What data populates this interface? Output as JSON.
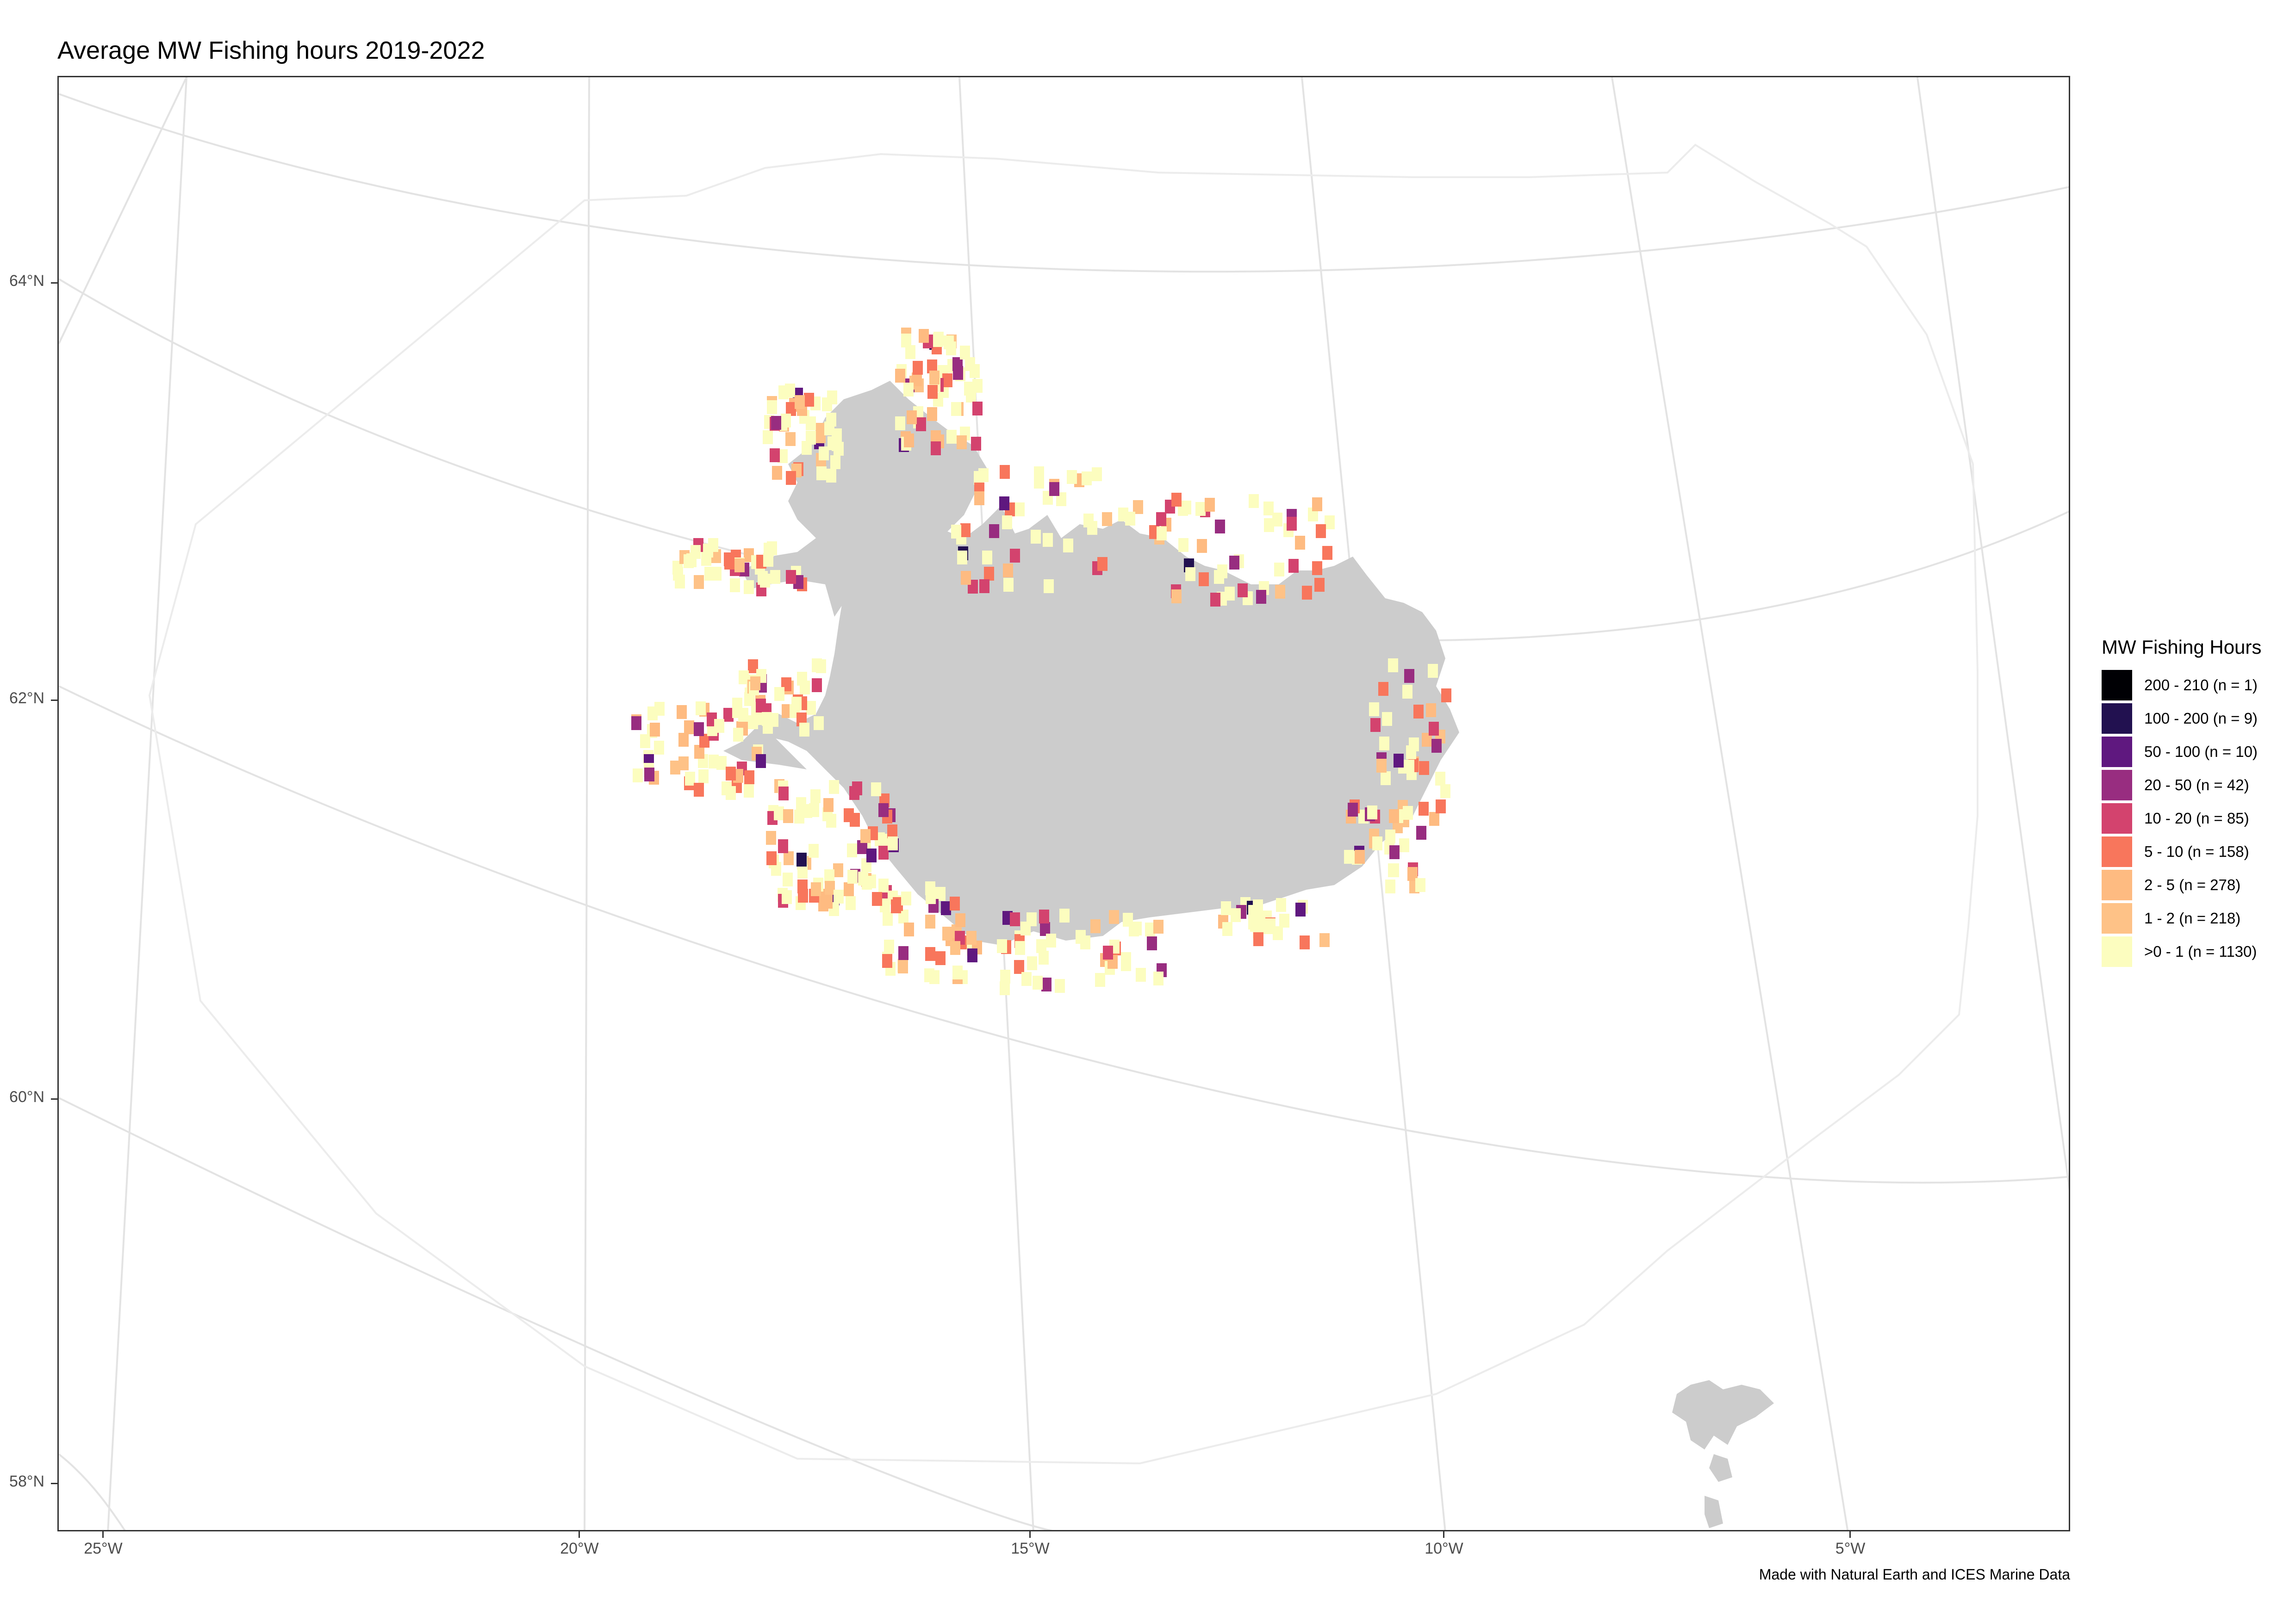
{
  "title": "Average MW Fishing hours 2019-2022",
  "caption": "Made with Natural Earth and ICES Marine Data",
  "axes": {
    "y_ticks": [
      {
        "label": "64°N",
        "lat": 64
      },
      {
        "label": "62°N",
        "lat": 62
      },
      {
        "label": "60°N",
        "lat": 60
      },
      {
        "label": "58°N",
        "lat": 58
      }
    ],
    "x_ticks": [
      {
        "label": "25°W",
        "lon": -25
      },
      {
        "label": "20°W",
        "lon": -20
      },
      {
        "label": "15°W",
        "lon": -15
      },
      {
        "label": "10°W",
        "lon": -10
      },
      {
        "label": "5°W",
        "lon": -5
      }
    ]
  },
  "legend": {
    "title": "MW Fishing Hours",
    "items": [
      {
        "label": "200 - 210 (n = 1)",
        "color": "#000004"
      },
      {
        "label": "100 - 200 (n = 9)",
        "color": "#221150"
      },
      {
        "label": "50 - 100 (n = 10)",
        "color": "#5f187f"
      },
      {
        "label": "20 - 50 (n = 42)",
        "color": "#982d80"
      },
      {
        "label": "10 - 20 (n = 85)",
        "color": "#d3436e"
      },
      {
        "label": "5 - 10 (n = 158)",
        "color": "#f8765c"
      },
      {
        "label": "2 - 5 (n = 278)",
        "color": "#febb81"
      },
      {
        "label": "1 - 2 (n = 218)",
        "color": "#fec287"
      },
      {
        "label": ">0 - 1 (n = 1130)",
        "color": "#fcfdbf"
      }
    ]
  },
  "colors": {
    "land": "#cccccc",
    "graticule": "#e3e3e3",
    "panel_border": "#333333"
  }
}
